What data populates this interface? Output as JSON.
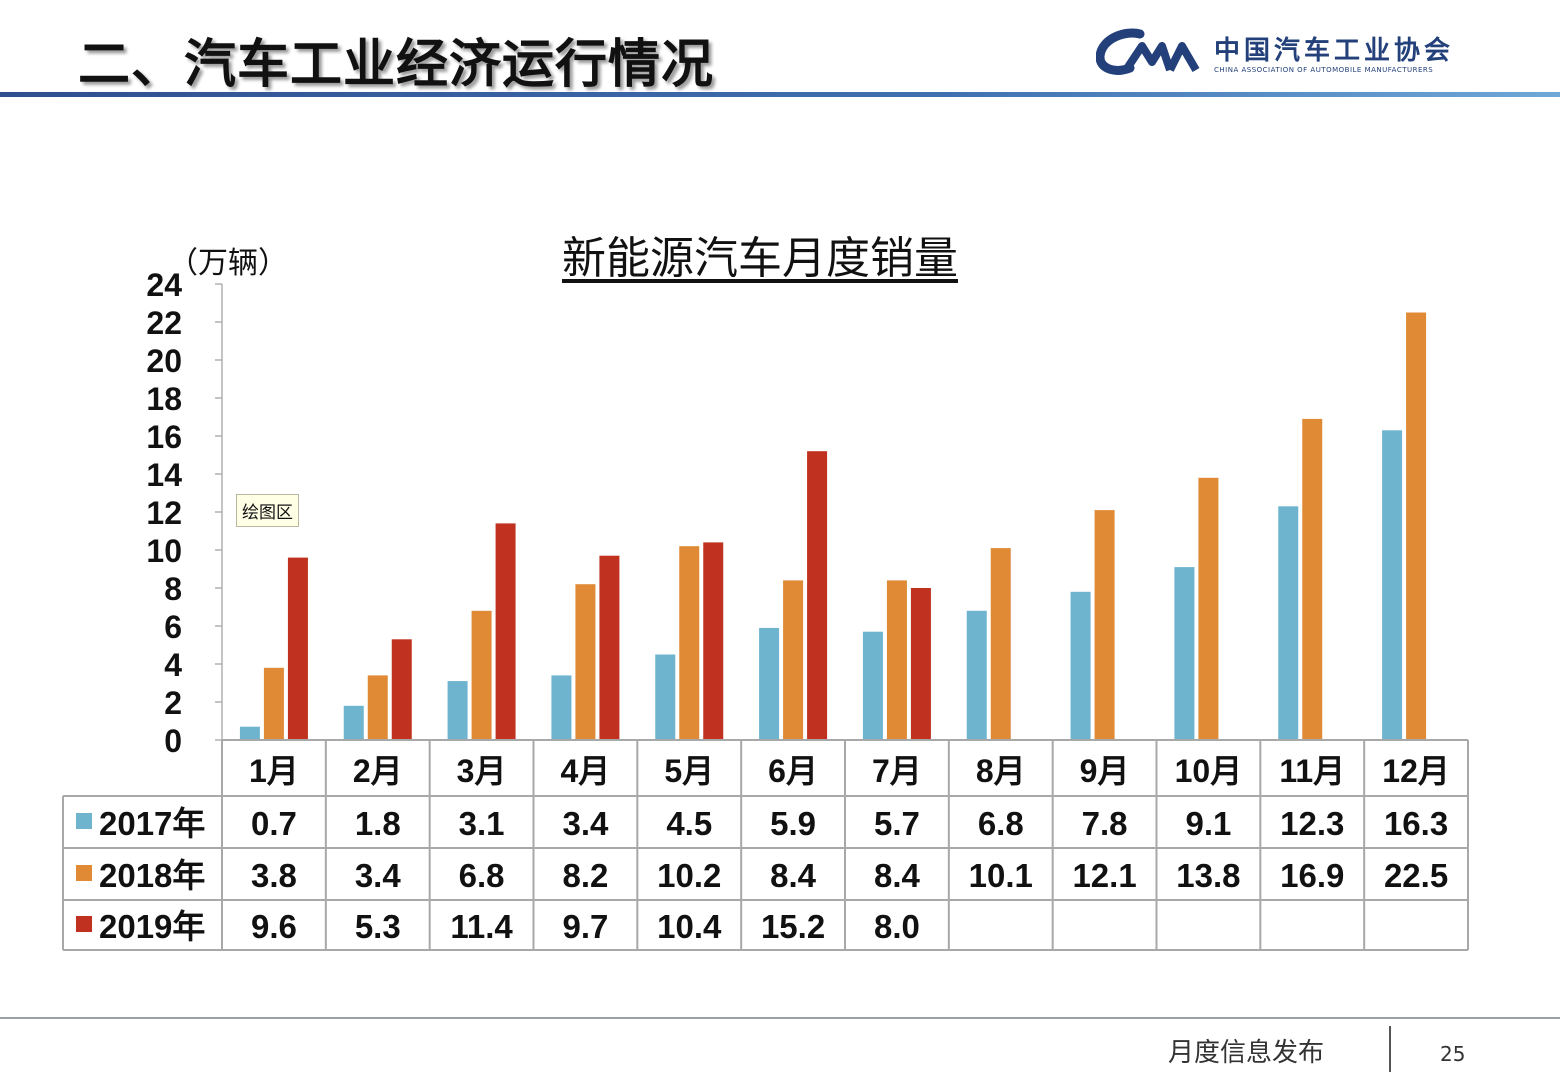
{
  "slide": {
    "title": "二、汽车工业经济运行情况",
    "org_name": "中国汽车工业协会",
    "org_name_en": "CHINA ASSOCIATION OF AUTOMOBILE MANUFACTURERS",
    "footer_label": "月度信息发布",
    "page_number": "25",
    "tooltip": "绘图区"
  },
  "chart_data": {
    "type": "bar",
    "title": "新能源汽车月度销量",
    "ylabel": "（万辆）",
    "ylim": [
      0,
      24
    ],
    "yticks": [
      "0",
      "2",
      "4",
      "6",
      "8",
      "10",
      "12",
      "14",
      "16",
      "18",
      "20",
      "22",
      "24"
    ],
    "categories": [
      "1月",
      "2月",
      "3月",
      "4月",
      "5月",
      "6月",
      "7月",
      "8月",
      "9月",
      "10月",
      "11月",
      "12月"
    ],
    "series": [
      {
        "name": "2017年",
        "color": "#6fb4cf",
        "values": [
          0.7,
          1.8,
          3.1,
          3.4,
          4.5,
          5.9,
          5.7,
          6.8,
          7.8,
          9.1,
          12.3,
          16.3
        ],
        "labels": [
          "0.7",
          "1.8",
          "3.1",
          "3.4",
          "4.5",
          "5.9",
          "5.7",
          "6.8",
          "7.8",
          "9.1",
          "12.3",
          "16.3"
        ]
      },
      {
        "name": "2018年",
        "color": "#e08a36",
        "values": [
          3.8,
          3.4,
          6.8,
          8.2,
          10.2,
          8.4,
          8.4,
          10.1,
          12.1,
          13.8,
          16.9,
          22.5
        ],
        "labels": [
          "3.8",
          "3.4",
          "6.8",
          "8.2",
          "10.2",
          "8.4",
          "8.4",
          "10.1",
          "12.1",
          "13.8",
          "16.9",
          "22.5"
        ]
      },
      {
        "name": "2019年",
        "color": "#c0321f",
        "values": [
          9.6,
          5.3,
          11.4,
          9.7,
          10.4,
          15.2,
          8.0,
          null,
          null,
          null,
          null,
          null
        ],
        "labels": [
          "9.6",
          "5.3",
          "11.4",
          "9.7",
          "10.4",
          "15.2",
          "8.0",
          "",
          "",
          "",
          "",
          ""
        ]
      }
    ],
    "legend": "data-table",
    "grid": false
  }
}
